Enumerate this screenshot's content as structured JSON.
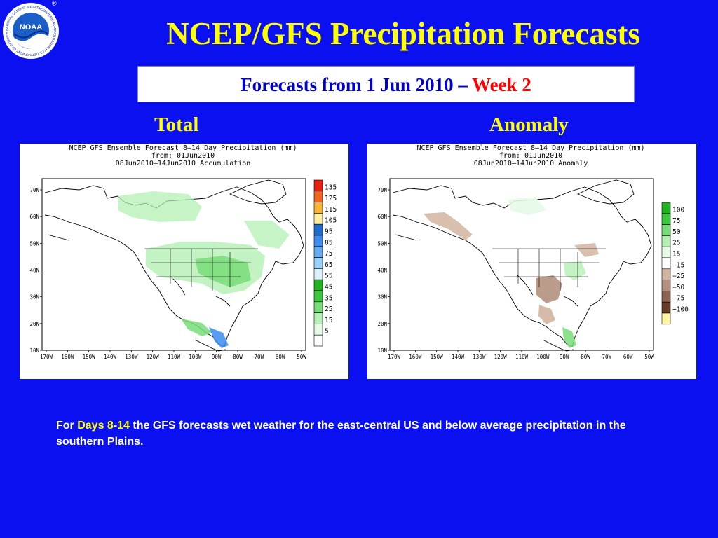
{
  "header": {
    "title": "NCEP/GFS Precipitation Forecasts",
    "subtitle_main": "Forecasts from 1 Jun 2010 – ",
    "subtitle_highlight": "Week 2"
  },
  "logo": {
    "icon": "noaa-seal-icon",
    "text": "NOAA",
    "ring_text": "NATIONAL OCEANIC AND ATMOSPHERIC ADMINISTRATION • U.S. DEPARTMENT OF COMMERCE",
    "registered": "®"
  },
  "panels": {
    "total": {
      "label": "Total",
      "map_title": [
        "NCEP GFS Ensemble Forecast 8–14 Day Precipitation (mm)",
        "from: 01Jun2010",
        "08Jun2010–14Jun2010 Accumulation"
      ],
      "legend": [
        {
          "label": "135",
          "color": "#e8200c"
        },
        {
          "label": "125",
          "color": "#f2641e"
        },
        {
          "label": "115",
          "color": "#fab432"
        },
        {
          "label": "105",
          "color": "#fff0a0"
        },
        {
          "label": "95",
          "color": "#1e6ed2"
        },
        {
          "label": "85",
          "color": "#3c8cf0"
        },
        {
          "label": "75",
          "color": "#64aaf0"
        },
        {
          "label": "65",
          "color": "#96d2fa"
        },
        {
          "label": "55",
          "color": "#dcf0fa"
        },
        {
          "label": "45",
          "color": "#1eb41e"
        },
        {
          "label": "35",
          "color": "#3cc83c"
        },
        {
          "label": "25",
          "color": "#78dc78"
        },
        {
          "label": "15",
          "color": "#b4f0b4"
        },
        {
          "label": "5",
          "color": "#e6fae6"
        },
        {
          "label": "",
          "color": "#ffffff"
        }
      ]
    },
    "anomaly": {
      "label": "Anomaly",
      "map_title": [
        "NCEP GFS Ensemble Forecast 8–14 Day Precipitation (mm)",
        "from: 01Jun2010",
        "08Jun2010–14Jun2010 Anomaly"
      ],
      "legend": [
        {
          "label": "100",
          "color": "#1eb41e"
        },
        {
          "label": "75",
          "color": "#3cc83c"
        },
        {
          "label": "50",
          "color": "#78dc78"
        },
        {
          "label": "25",
          "color": "#b4f0b4"
        },
        {
          "label": "15",
          "color": "#e6fae6"
        },
        {
          "label": "−15",
          "color": "#ffffff"
        },
        {
          "label": "−25",
          "color": "#d2b4a0"
        },
        {
          "label": "−50",
          "color": "#b4917d"
        },
        {
          "label": "−75",
          "color": "#8c6450"
        },
        {
          "label": "−100",
          "color": "#643c28"
        },
        {
          "label": "",
          "color": "#fff5a0"
        }
      ]
    }
  },
  "map": {
    "lat_labels": [
      "70N",
      "60N",
      "50N",
      "40N",
      "30N",
      "20N",
      "10N"
    ],
    "lon_labels": [
      "170W",
      "160W",
      "150W",
      "140W",
      "130W",
      "120W",
      "110W",
      "100W",
      "90W",
      "80W",
      "70W",
      "60W",
      "50W"
    ]
  },
  "caption": {
    "pre": "For ",
    "highlight": "Days 8-14",
    "post": " the GFS forecasts wet weather for the east-central US and below average precipitation in the southern Plains."
  }
}
